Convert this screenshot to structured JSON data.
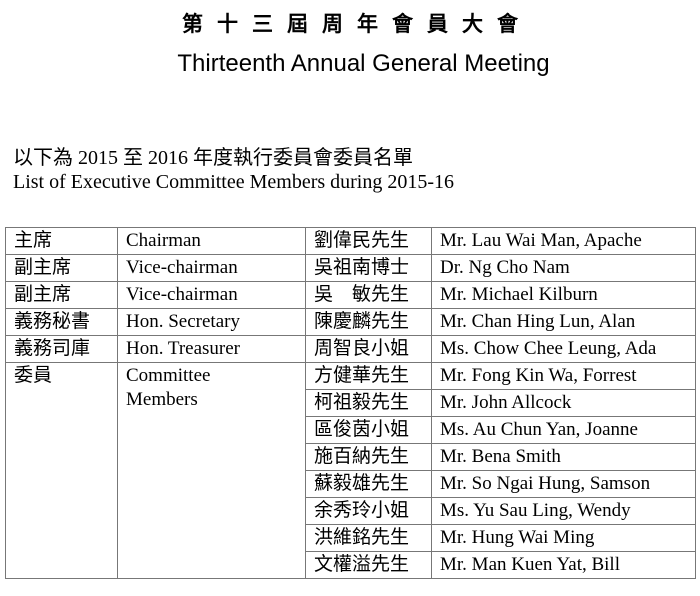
{
  "header": {
    "title_zh": "第十三屆周年會員大會",
    "title_en": "Thirteenth Annual General Meeting"
  },
  "intro": {
    "zh": "以下為 2015 至 2016 年度執行委員會委員名單",
    "en": "List of Executive Committee Members during 2015-16"
  },
  "officers": [
    {
      "role_zh": "主席",
      "role_en": "Chairman",
      "name_zh": "劉偉民先生",
      "name_en": "Mr. Lau Wai Man, Apache"
    },
    {
      "role_zh": "副主席",
      "role_en": "Vice-chairman",
      "name_zh": "吳祖南博士",
      "name_en": "Dr. Ng Cho Nam"
    },
    {
      "role_zh": "副主席",
      "role_en": "Vice-chairman",
      "name_zh": "吳　敏先生",
      "name_en": "Mr. Michael Kilburn"
    },
    {
      "role_zh": "義務秘書",
      "role_en": "Hon. Secretary",
      "name_zh": "陳慶麟先生",
      "name_en": "Mr. Chan Hing Lun, Alan"
    },
    {
      "role_zh": "義務司庫",
      "role_en": "Hon. Treasurer",
      "name_zh": "周智良小姐",
      "name_en": "Ms. Chow Chee Leung, Ada"
    }
  ],
  "committee": {
    "role_zh": "委員",
    "role_en_1": "Committee",
    "role_en_2": "Members",
    "members": [
      {
        "name_zh": "方健華先生",
        "name_en": "Mr. Fong Kin Wa, Forrest"
      },
      {
        "name_zh": "柯祖毅先生",
        "name_en": "Mr. John Allcock"
      },
      {
        "name_zh": "區俊茵小姐",
        "name_en": "Ms. Au Chun Yan, Joanne"
      },
      {
        "name_zh": "施百納先生",
        "name_en": "Mr. Bena Smith"
      },
      {
        "name_zh": "蘇毅雄先生",
        "name_en": "Mr. So Ngai Hung, Samson"
      },
      {
        "name_zh": "余秀玲小姐",
        "name_en": "Ms. Yu Sau Ling, Wendy"
      },
      {
        "name_zh": "洪維銘先生",
        "name_en": "Mr. Hung Wai Ming"
      },
      {
        "name_zh": "文權溢先生",
        "name_en": "Mr. Man Kuen Yat, Bill"
      }
    ]
  }
}
